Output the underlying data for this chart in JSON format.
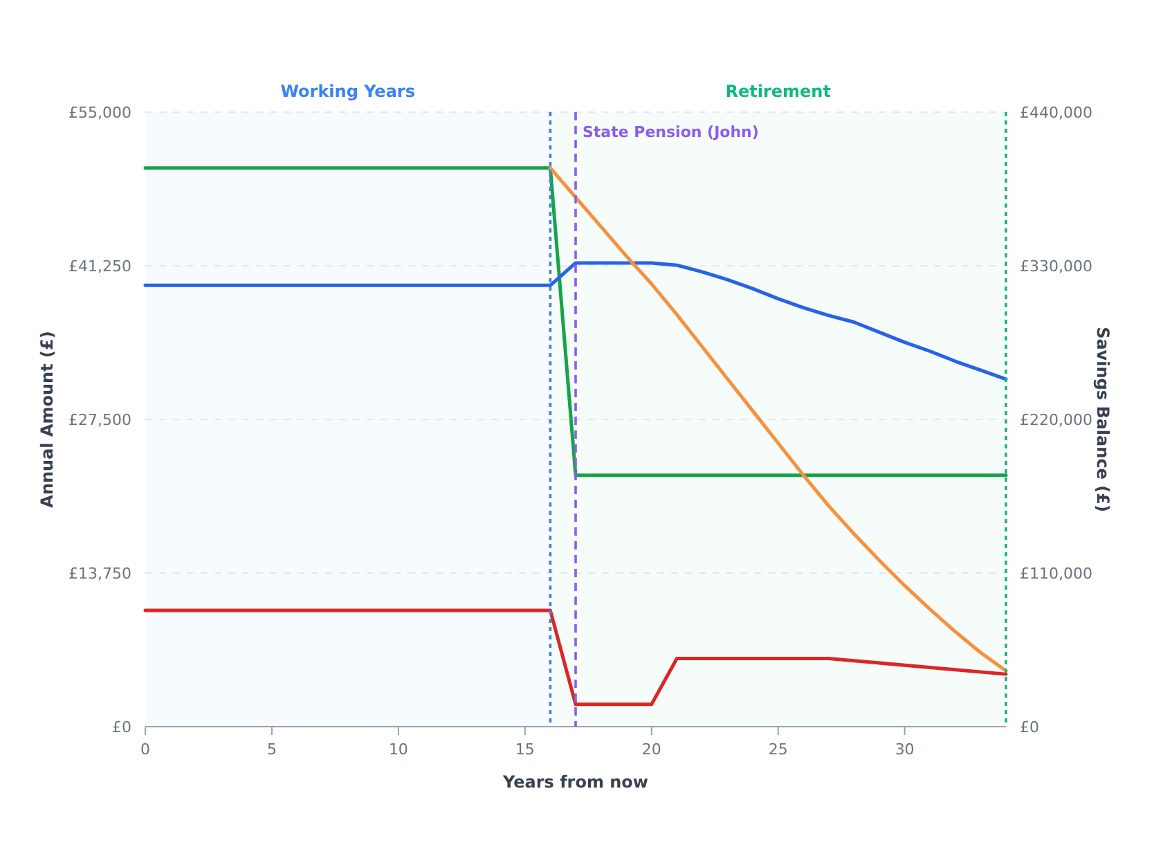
{
  "chart_data": {
    "type": "line",
    "xlabel": "Years from now",
    "ylabel": "Annual Amount (£)",
    "y2label": "Savings Balance (£)",
    "xlim": [
      0,
      34
    ],
    "xticks": [
      0,
      5,
      10,
      15,
      20,
      25,
      30
    ],
    "ylim": [
      0,
      55000
    ],
    "yticks": [
      {
        "value": 0,
        "label": "£0"
      },
      {
        "value": 13750,
        "label": "£13,750"
      },
      {
        "value": 27500,
        "label": "£27,500"
      },
      {
        "value": 41250,
        "label": "£41,250"
      },
      {
        "value": 55000,
        "label": "£55,000"
      }
    ],
    "y2lim": [
      0,
      440000
    ],
    "y2ticks": [
      {
        "value": 0,
        "label": "£0"
      },
      {
        "value": 110000,
        "label": "£110,000"
      },
      {
        "value": 220000,
        "label": "£220,000"
      },
      {
        "value": 330000,
        "label": "£330,000"
      },
      {
        "value": 440000,
        "label": "£440,000"
      }
    ],
    "grid": "y",
    "marker": "none",
    "line_style": "solid",
    "bands": [
      {
        "axis": "x",
        "from": 0,
        "to": 16,
        "label": "Working Years",
        "color": "#3b82f6"
      },
      {
        "axis": "x",
        "from": 16,
        "to": 34,
        "label": "Retirement",
        "color": "#10b981"
      }
    ],
    "ref_lines": [
      {
        "axis": "x",
        "value": 16,
        "label": null,
        "color": "#3b82f6",
        "line_style": "dotted"
      },
      {
        "axis": "x",
        "value": 17,
        "label": "State Pension (John)",
        "color": "#8b5cf6",
        "line_style": "dashed"
      },
      {
        "axis": "x",
        "value": 34,
        "label": null,
        "color": "#10b981",
        "line_style": "dotted"
      }
    ],
    "series": [
      {
        "color": "#16a34a",
        "x": [
          0,
          16,
          17,
          34
        ],
        "values": [
          50000,
          50000,
          22500,
          22500
        ]
      },
      {
        "color": "#2563eb",
        "x": [
          0,
          16,
          17,
          20,
          21,
          22,
          23,
          24,
          25,
          26,
          27,
          28,
          29,
          30,
          31,
          32,
          33,
          34
        ],
        "values": [
          39500,
          39500,
          41500,
          41500,
          41300,
          40700,
          40000,
          39200,
          38300,
          37500,
          36800,
          36200,
          35300,
          34400,
          33600,
          32700,
          31900,
          31100
        ]
      },
      {
        "color": "#dc2626",
        "x": [
          0,
          16,
          17,
          20,
          21,
          27,
          28,
          30,
          32,
          34
        ],
        "values": [
          10400,
          10400,
          2000,
          2000,
          6100,
          6100,
          5900,
          5500,
          5100,
          4700
        ]
      },
      {
        "color": "#f7913d",
        "axis": "y2",
        "x": [
          16,
          17,
          18,
          19,
          20,
          21,
          22,
          23,
          24,
          25,
          26,
          27,
          28,
          29,
          30,
          31,
          32,
          33,
          34
        ],
        "values": [
          400000,
          379000,
          358000,
          337000,
          317000,
          295000,
          272000,
          249000,
          226000,
          203000,
          180000,
          158000,
          138000,
          119000,
          101000,
          84000,
          68000,
          53000,
          40000
        ]
      }
    ]
  }
}
